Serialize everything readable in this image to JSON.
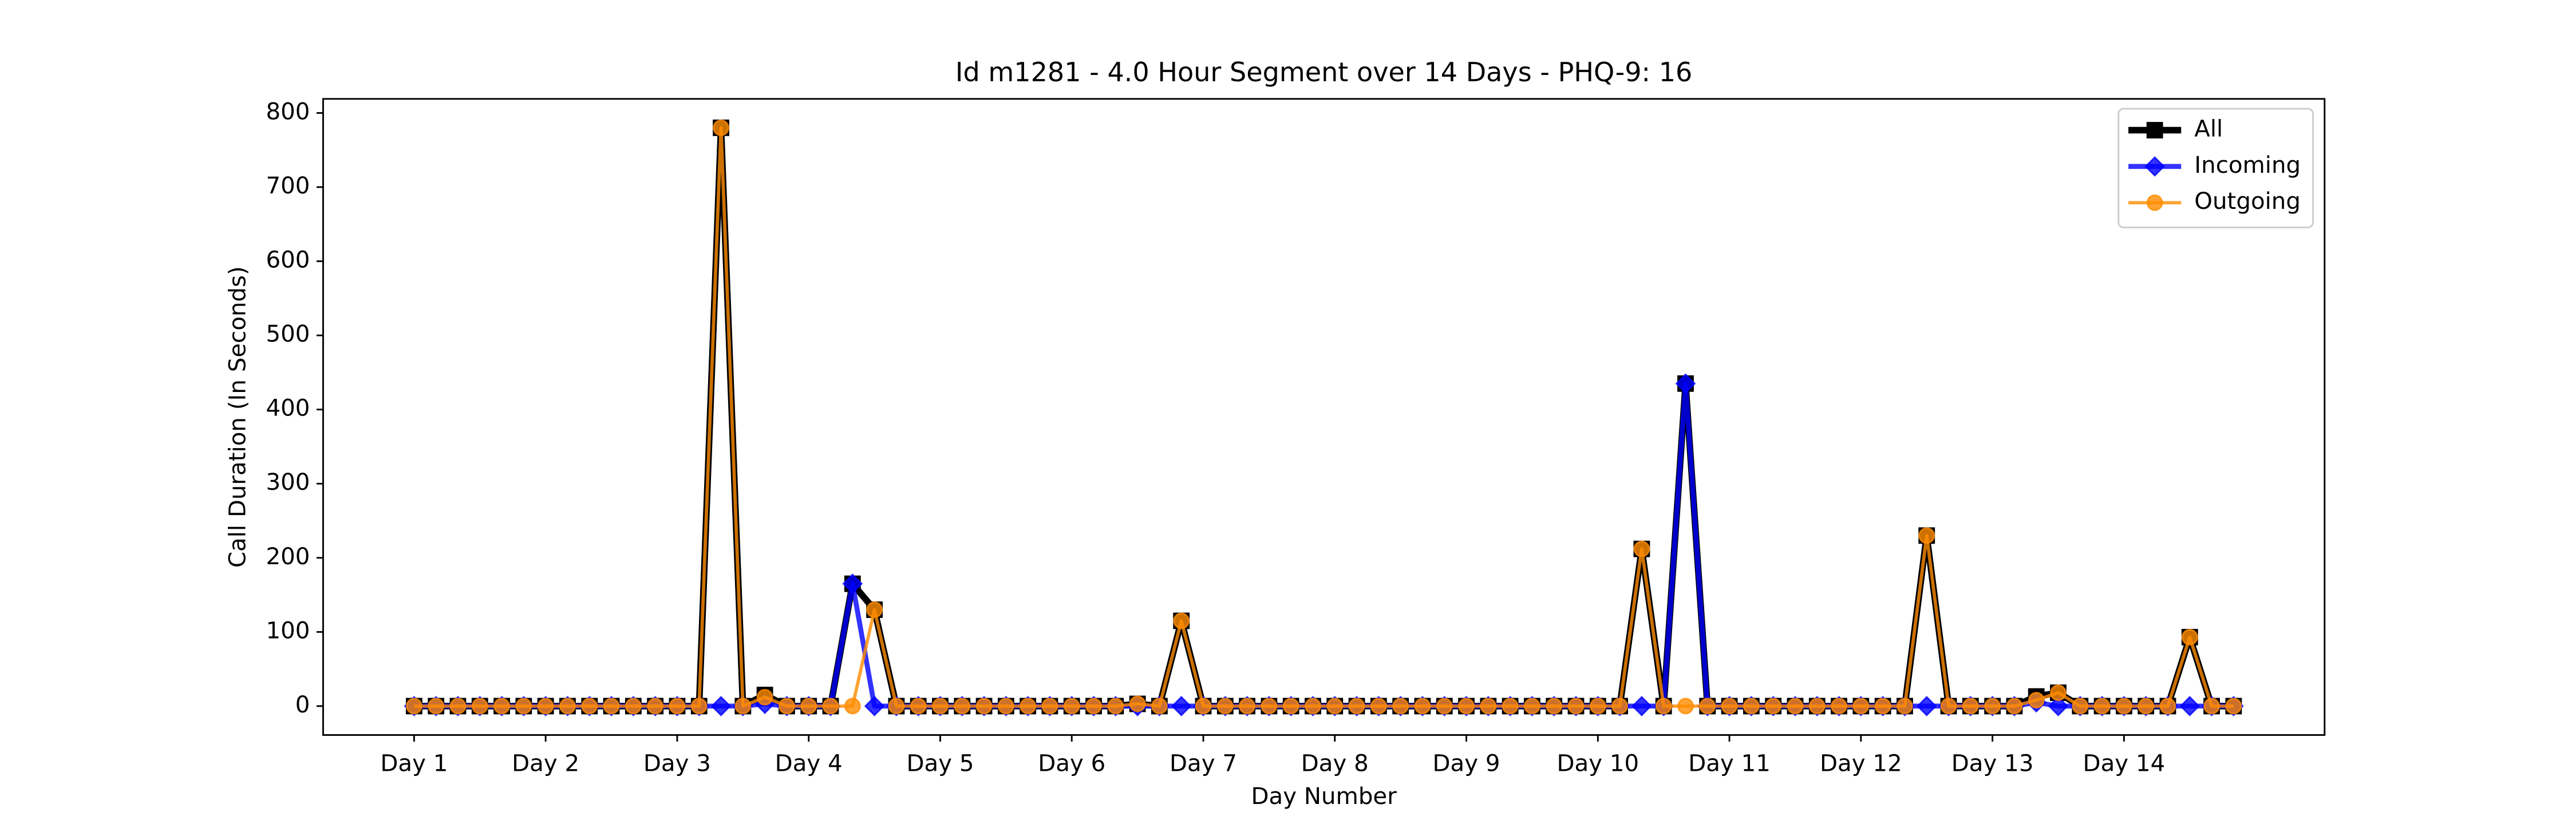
{
  "chart_data": {
    "type": "line",
    "title": "Id m1281 - 4.0 Hour Segment over 14 Days - PHQ-9: 16",
    "x_label": "Day Number",
    "y_label": "Call Duration (In Seconds)",
    "x": [
      0,
      1,
      2,
      3,
      4,
      5,
      6,
      7,
      8,
      9,
      10,
      11,
      12,
      13,
      14,
      15,
      16,
      17,
      18,
      19,
      20,
      21,
      22,
      23,
      24,
      25,
      26,
      27,
      28,
      29,
      30,
      31,
      32,
      33,
      34,
      35,
      36,
      37,
      38,
      39,
      40,
      41,
      42,
      43,
      44,
      45,
      46,
      47,
      48,
      49,
      50,
      51,
      52,
      53,
      54,
      55,
      56,
      57,
      58,
      59,
      60,
      61,
      62,
      63,
      64,
      65,
      66,
      67,
      68,
      69,
      70,
      71,
      72,
      73,
      74,
      75,
      76,
      77,
      78,
      79,
      80,
      81,
      82,
      83
    ],
    "series": [
      {
        "name": "All",
        "color": "#000000",
        "marker": "square",
        "values": [
          0,
          0,
          0,
          0,
          0,
          0,
          0,
          0,
          0,
          0,
          0,
          0,
          0,
          0,
          780,
          0,
          15,
          0,
          0,
          0,
          165,
          130,
          0,
          0,
          0,
          0,
          0,
          0,
          0,
          0,
          0,
          0,
          0,
          3,
          0,
          115,
          0,
          0,
          0,
          0,
          0,
          0,
          0,
          0,
          0,
          0,
          0,
          0,
          0,
          0,
          0,
          0,
          0,
          0,
          0,
          0,
          212,
          0,
          435,
          0,
          0,
          0,
          0,
          0,
          0,
          0,
          0,
          0,
          0,
          230,
          0,
          0,
          0,
          0,
          13,
          18,
          0,
          0,
          0,
          0,
          0,
          93,
          0,
          0
        ]
      },
      {
        "name": "Incoming",
        "color": "#0000ff",
        "marker": "diamond",
        "values": [
          0,
          0,
          0,
          0,
          0,
          0,
          0,
          0,
          0,
          0,
          0,
          0,
          0,
          0,
          0,
          0,
          3,
          0,
          0,
          0,
          165,
          0,
          0,
          0,
          0,
          0,
          0,
          0,
          0,
          0,
          0,
          0,
          0,
          0,
          0,
          0,
          0,
          0,
          0,
          0,
          0,
          0,
          0,
          0,
          0,
          0,
          0,
          0,
          0,
          0,
          0,
          0,
          0,
          0,
          0,
          0,
          0,
          0,
          435,
          0,
          0,
          0,
          0,
          0,
          0,
          0,
          0,
          0,
          0,
          0,
          0,
          0,
          0,
          0,
          5,
          0,
          0,
          0,
          0,
          0,
          0,
          0,
          0,
          0
        ]
      },
      {
        "name": "Outgoing",
        "color": "#ff8c00",
        "marker": "circle",
        "values": [
          0,
          0,
          0,
          0,
          0,
          0,
          0,
          0,
          0,
          0,
          0,
          0,
          0,
          0,
          780,
          0,
          12,
          0,
          0,
          0,
          0,
          130,
          0,
          0,
          0,
          0,
          0,
          0,
          0,
          0,
          0,
          0,
          0,
          3,
          0,
          115,
          0,
          0,
          0,
          0,
          0,
          0,
          0,
          0,
          0,
          0,
          0,
          0,
          0,
          0,
          0,
          0,
          0,
          0,
          0,
          0,
          212,
          0,
          0,
          0,
          0,
          0,
          0,
          0,
          0,
          0,
          0,
          0,
          0,
          230,
          0,
          0,
          0,
          0,
          8,
          18,
          0,
          0,
          0,
          0,
          0,
          93,
          0,
          0
        ]
      }
    ],
    "xlim": [
      -4.15,
      87.15
    ],
    "xticks": [
      {
        "value": 0,
        "label": "Day 1"
      },
      {
        "value": 6,
        "label": "Day 2"
      },
      {
        "value": 12,
        "label": "Day 3"
      },
      {
        "value": 18,
        "label": "Day 4"
      },
      {
        "value": 24,
        "label": "Day 5"
      },
      {
        "value": 30,
        "label": "Day 6"
      },
      {
        "value": 36,
        "label": "Day 7"
      },
      {
        "value": 42,
        "label": "Day 8"
      },
      {
        "value": 48,
        "label": "Day 9"
      },
      {
        "value": 54,
        "label": "Day 10"
      },
      {
        "value": 60,
        "label": "Day 11"
      },
      {
        "value": 66,
        "label": "Day 12"
      },
      {
        "value": 72,
        "label": "Day 13"
      },
      {
        "value": 78,
        "label": "Day 14"
      }
    ],
    "ylim": [
      -39,
      819
    ],
    "yticks": [
      0,
      100,
      200,
      300,
      400,
      500,
      600,
      700,
      800
    ],
    "legend": "upper right"
  }
}
